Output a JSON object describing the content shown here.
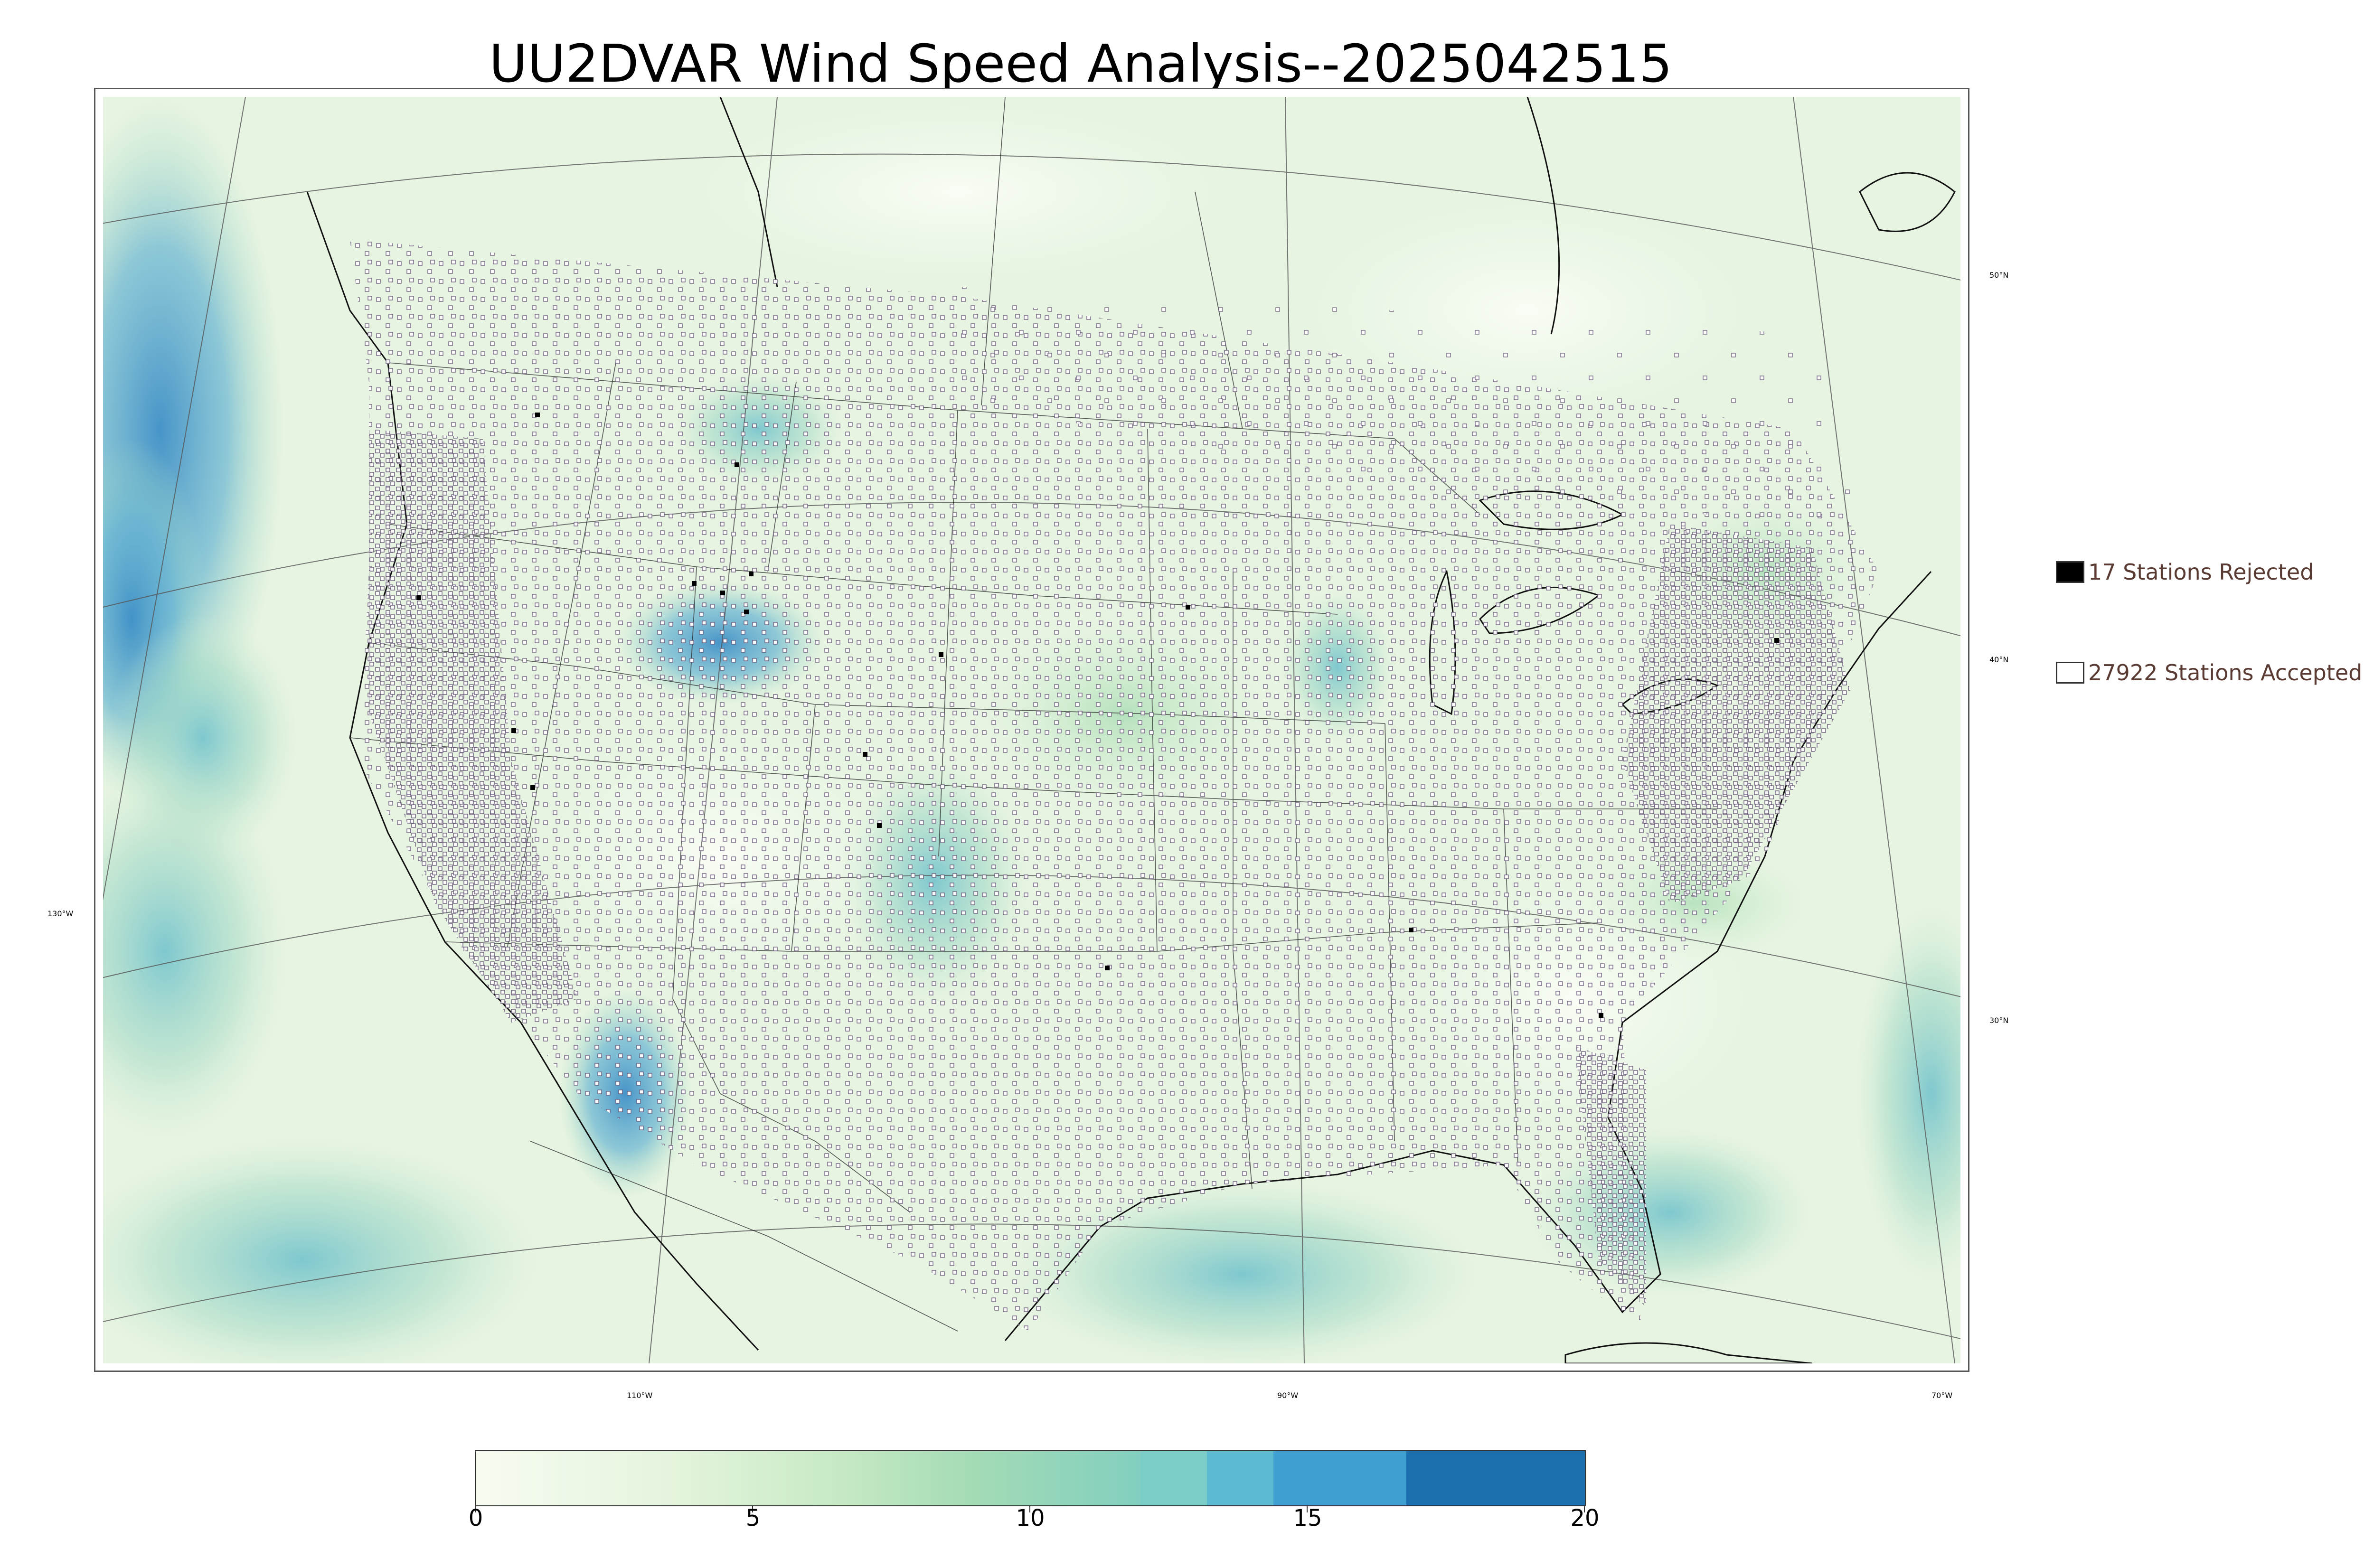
{
  "title": "UU2DVAR Wind Speed Analysis--2025042515",
  "legend": {
    "rejected": {
      "label": "17 Stations Rejected",
      "count": 17,
      "swatch_color": "#000000"
    },
    "accepted": {
      "label": "27922 Stations Accepted",
      "count": 27922,
      "swatch_color": "#ffffff"
    }
  },
  "map_labels": {
    "lat_50": "50°N",
    "lat_40": "40°N",
    "lat_30": "30°N",
    "lon_130": "130°W",
    "lon_110": "110°W",
    "lon_90": "90°W",
    "lon_70": "70°W"
  },
  "colorbar": {
    "ticks": [
      "0",
      "5",
      "10",
      "15",
      "20"
    ],
    "range": [
      0,
      20
    ],
    "colors": {
      "low": "#f7fcf0",
      "mid_low": "#e0f3db",
      "mid": "#a8ddb5",
      "mid_high": "#7bccc4",
      "high1": "#5ab4d0",
      "high2": "#43a2ca",
      "highest": "#1a6fb0"
    }
  },
  "colors": {
    "ocean_base": "#e8f5e4",
    "land_base": "#eaf6e3",
    "station_edge": "#6a5a7a",
    "rejected_fill": "#000000"
  }
}
